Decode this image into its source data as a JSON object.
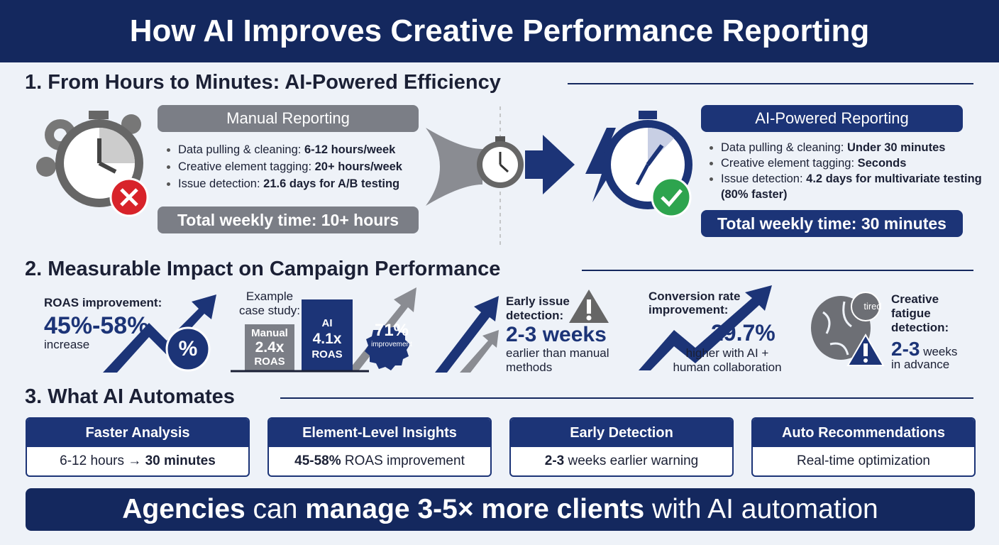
{
  "header": {
    "title": "How AI Improves Creative Performance Reporting"
  },
  "section1": {
    "heading": "1. From Hours to Minutes: AI-Powered Efficiency",
    "manual": {
      "title": "Manual Reporting",
      "items": [
        {
          "label": "Data pulling & cleaning:",
          "value": "6-12 hours/week"
        },
        {
          "label": "Creative element tagging:",
          "value": "20+ hours/week"
        },
        {
          "label": "Issue detection:",
          "value": "21.6 days for A/B testing"
        }
      ],
      "total": "Total weekly time: 10+ hours"
    },
    "ai": {
      "title": "AI-Powered Reporting",
      "items": [
        {
          "label": "Data pulling & cleaning:",
          "value": "Under 30 minutes"
        },
        {
          "label": "Creative element tagging:",
          "value": "Seconds"
        },
        {
          "label": "Issue detection:",
          "value": "4.2 days for multivariate testing (80% faster)"
        }
      ],
      "total": "Total weekly time: 30 minutes"
    }
  },
  "section2": {
    "heading": "2. Measurable Impact on Campaign Performance",
    "roas": {
      "label": "ROAS improvement:",
      "value": "45%-58%",
      "note": "increase",
      "badge": "%"
    },
    "case": {
      "label": "Example case study:",
      "manual": {
        "name": "Manual",
        "value": "2.4x",
        "unit": "ROAS"
      },
      "ai": {
        "name": "AI",
        "value": "4.1x",
        "unit": "ROAS"
      },
      "badge_value": "71%",
      "badge_label": "improvement"
    },
    "early": {
      "label": "Early issue detection:",
      "value": "2-3 weeks",
      "note": "earlier than manual methods"
    },
    "conversion": {
      "label": "Conversion rate improvement:",
      "value": "29.7%",
      "note": "higher with AI + human collaboration"
    },
    "fatigue": {
      "icon_text": "tired",
      "label": "Creative fatigue detection:",
      "value": "2-3",
      "unit": "weeks",
      "note": "in advance"
    }
  },
  "section3": {
    "heading": "3. What AI Automates",
    "cards": [
      {
        "title": "Faster Analysis",
        "before": "6-12 hours →",
        "strong": "30 minutes"
      },
      {
        "title": "Element-Level Insights",
        "strong": "45-58%",
        "after": "ROAS improvement"
      },
      {
        "title": "Early Detection",
        "strong": "2-3",
        "after": "weeks earlier warning"
      },
      {
        "title": "Auto Recommendations",
        "after": "Real-time optimization"
      }
    ]
  },
  "footer": {
    "a": "Agencies",
    "b": "can",
    "c": "manage 3-5× more clients",
    "d": "with AI automation"
  }
}
